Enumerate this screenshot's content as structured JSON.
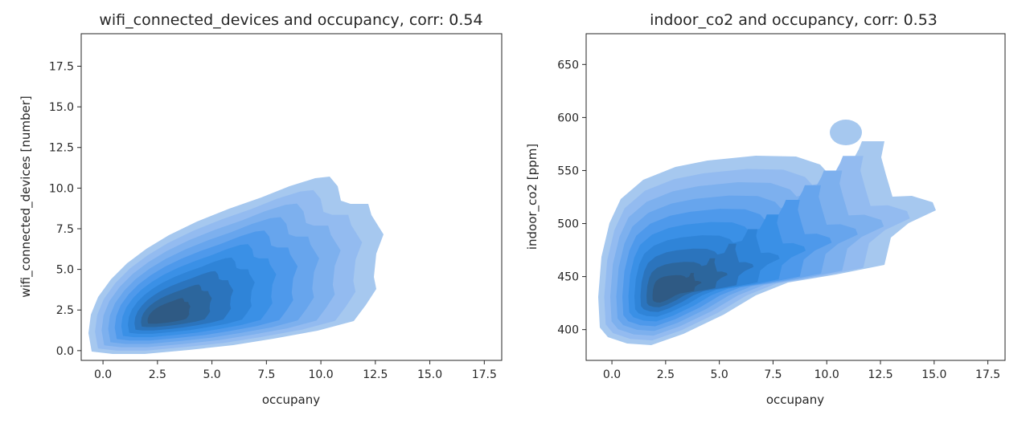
{
  "colors": {
    "level_fills": [
      "#a6c8ef",
      "#93bbf0",
      "#7db0ee",
      "#67a5ed",
      "#4e99eb",
      "#3a90e6",
      "#2f84d8",
      "#2b74bd",
      "#2c669d",
      "#2f5a84"
    ],
    "axis": "#262626"
  },
  "chart_data": [
    {
      "type": "kde",
      "title": "wifi_connected_devices and occupancy, corr: 0.54",
      "xlabel": "occupany",
      "ylabel": "wifi_connected_devices [number]",
      "xlim": [
        -1.0,
        18.3
      ],
      "ylim": [
        -0.6,
        19.5
      ],
      "xticks": [
        "0.0",
        "2.5",
        "5.0",
        "7.5",
        "10.0",
        "12.5",
        "15.0",
        "17.5"
      ],
      "yticks": [
        "0.0",
        "2.5",
        "5.0",
        "7.5",
        "10.0",
        "12.5",
        "15.0",
        "17.5"
      ],
      "xtick_values": [
        0,
        2.5,
        5,
        7.5,
        10,
        12.5,
        15,
        17.5
      ],
      "ytick_values": [
        0,
        2.5,
        5,
        7.5,
        10,
        12.5,
        15,
        17.5
      ],
      "grid": false,
      "peak": [
        1.9,
        1.7
      ],
      "density_levels": 10
    },
    {
      "type": "kde",
      "title": "indoor_co2 and occupancy, corr: 0.53",
      "xlabel": "occupany",
      "ylabel": "indoor_co2 [ppm]",
      "xlim": [
        -1.2,
        18.3
      ],
      "ylim": [
        371,
        679
      ],
      "xticks": [
        "0.0",
        "2.5",
        "5.0",
        "7.5",
        "10.0",
        "12.5",
        "15.0",
        "17.5"
      ],
      "yticks": [
        "400",
        "450",
        "500",
        "550",
        "600",
        "650"
      ],
      "xtick_values": [
        0,
        2.5,
        5,
        7.5,
        10,
        12.5,
        15,
        17.5
      ],
      "ytick_values": [
        400,
        450,
        500,
        550,
        600,
        650
      ],
      "grid": false,
      "peak": [
        2.0,
        430
      ],
      "density_levels": 10
    }
  ]
}
